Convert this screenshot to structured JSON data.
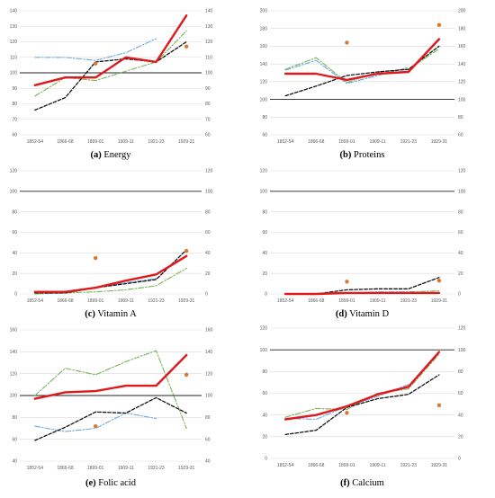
{
  "colors": {
    "thick": "#e0191d",
    "black_dash": "#111111",
    "blue_dashdot": "#6fa8dc",
    "green_dashdot": "#77b55a",
    "dot": "#d9782f",
    "grid": "#d9d9d9",
    "ref": "#222222"
  },
  "chart_data": [
    {
      "type": "line",
      "caption_label": "(a)",
      "caption_text": " Energy",
      "categories": [
        "1852-54",
        "1866-68",
        "1899-01",
        "1909-11",
        "1921-23",
        "1929-31"
      ],
      "ylim": [
        60,
        140
      ],
      "yticks": [
        60,
        70,
        80,
        90,
        100,
        110,
        120,
        130,
        140
      ],
      "right_axis": true,
      "reference_line": 100,
      "series": [
        {
          "style": "thick",
          "values": [
            92,
            97,
            97,
            110,
            107,
            137
          ]
        },
        {
          "style": "black_dash",
          "values": [
            76,
            84,
            107,
            109,
            107,
            120
          ]
        },
        {
          "style": "blue_dashdot",
          "values": [
            110,
            110,
            108,
            113,
            122,
            null
          ]
        },
        {
          "style": "green_dashdot",
          "values": [
            85,
            97,
            95,
            null,
            107,
            127
          ]
        }
      ],
      "points": [
        {
          "x": "1899-01",
          "y": 106
        },
        {
          "x": "1929-31",
          "y": 117
        }
      ]
    },
    {
      "type": "line",
      "caption_label": "(b)",
      "caption_text": " Proteins",
      "categories": [
        "1852-54",
        "1866-68",
        "1899-01",
        "1909-11",
        "1921-23",
        "1929-31"
      ],
      "ylim": [
        60,
        200
      ],
      "yticks": [
        60,
        80,
        100,
        120,
        140,
        160,
        180,
        200
      ],
      "right_axis": true,
      "reference_line": 100,
      "series": [
        {
          "style": "thick",
          "values": [
            129,
            129,
            122,
            129,
            131,
            168
          ]
        },
        {
          "style": "black_dash",
          "values": [
            104,
            115,
            127,
            131,
            134,
            160
          ]
        },
        {
          "style": "blue_dashdot",
          "values": [
            133,
            144,
            118,
            127,
            136,
            null
          ]
        },
        {
          "style": "green_dashdot",
          "values": [
            134,
            147,
            119,
            131,
            134,
            157
          ]
        }
      ],
      "points": [
        {
          "x": "1899-01",
          "y": 164
        },
        {
          "x": "1929-31",
          "y": 184
        }
      ]
    },
    {
      "type": "line",
      "caption_label": "(c)",
      "caption_text": " Vitamin A",
      "categories": [
        "1852-54",
        "1866-68",
        "1899-01",
        "1909-11",
        "1921-23",
        "1929-31"
      ],
      "ylim": [
        0,
        120
      ],
      "yticks": [
        0,
        20,
        40,
        60,
        80,
        100,
        120
      ],
      "right_axis": true,
      "reference_line": 100,
      "series": [
        {
          "style": "thick",
          "values": [
            2,
            2,
            6,
            13,
            19,
            37
          ]
        },
        {
          "style": "black_dash",
          "values": [
            1,
            1,
            6,
            10,
            14,
            43
          ]
        },
        {
          "style": "blue_dashdot",
          "values": [
            1,
            1,
            6,
            11,
            15,
            null
          ]
        },
        {
          "style": "green_dashdot",
          "values": [
            0,
            1,
            2,
            4,
            8,
            25
          ]
        }
      ],
      "points": [
        {
          "x": "1899-01",
          "y": 35
        },
        {
          "x": "1929-31",
          "y": 42
        }
      ]
    },
    {
      "type": "line",
      "caption_label": "(d)",
      "caption_text": " Vitamin D",
      "categories": [
        "1852-54",
        "1866-68",
        "1899-01",
        "1909-11",
        "1921-23",
        "1929-31"
      ],
      "ylim": [
        0,
        120
      ],
      "yticks": [
        0,
        20,
        40,
        60,
        80,
        100,
        120
      ],
      "right_axis": true,
      "reference_line": 100,
      "series": [
        {
          "style": "thick",
          "values": [
            0,
            0,
            1,
            1,
            1,
            1
          ]
        },
        {
          "style": "black_dash",
          "values": [
            0,
            0,
            4,
            5,
            5,
            16
          ]
        },
        {
          "style": "blue_dashdot",
          "values": [
            0,
            0,
            1,
            2,
            2,
            null
          ]
        },
        {
          "style": "green_dashdot",
          "values": [
            0,
            0,
            1,
            1,
            2,
            3
          ]
        }
      ],
      "points": [
        {
          "x": "1899-01",
          "y": 12
        },
        {
          "x": "1929-31",
          "y": 13
        }
      ]
    },
    {
      "type": "line",
      "caption_label": "(e)",
      "caption_text": " Folic acid",
      "categories": [
        "1852-54",
        "1866-68",
        "1899-01",
        "1909-11",
        "1921-23",
        "1929-31"
      ],
      "ylim": [
        40,
        160
      ],
      "yticks": [
        40,
        60,
        80,
        100,
        120,
        140,
        160
      ],
      "right_axis": true,
      "reference_line": 100,
      "series": [
        {
          "style": "thick",
          "values": [
            97,
            103,
            104,
            109,
            109,
            137
          ]
        },
        {
          "style": "black_dash",
          "values": [
            59,
            71,
            85,
            84,
            98,
            84
          ]
        },
        {
          "style": "blue_dashdot",
          "values": [
            72,
            67,
            70,
            84,
            79,
            null
          ]
        },
        {
          "style": "green_dashdot",
          "values": [
            100,
            125,
            119,
            131,
            141,
            70
          ]
        }
      ],
      "points": [
        {
          "x": "1899-01",
          "y": 72
        },
        {
          "x": "1929-31",
          "y": 119
        }
      ]
    },
    {
      "type": "line",
      "caption_label": "(f)",
      "caption_text": " Calcium",
      "categories": [
        "1852-54",
        "1866-68",
        "1899-01",
        "1909-11",
        "1921-23",
        "1929-31"
      ],
      "ylim": [
        0,
        120
      ],
      "yticks": [
        0,
        20,
        40,
        60,
        80,
        100,
        120
      ],
      "right_axis": true,
      "reference_line": 100,
      "series": [
        {
          "style": "thick",
          "values": [
            36,
            40,
            48,
            59,
            66,
            98
          ]
        },
        {
          "style": "black_dash",
          "values": [
            22,
            26,
            47,
            55,
            59,
            77
          ]
        },
        {
          "style": "blue_dashdot",
          "values": [
            37,
            36,
            48,
            57,
            68,
            null
          ]
        },
        {
          "style": "green_dashdot",
          "values": [
            38,
            46,
            45,
            60,
            64,
            96
          ]
        }
      ],
      "points": [
        {
          "x": "1899-01",
          "y": 42
        },
        {
          "x": "1929-31",
          "y": 49
        }
      ]
    }
  ]
}
